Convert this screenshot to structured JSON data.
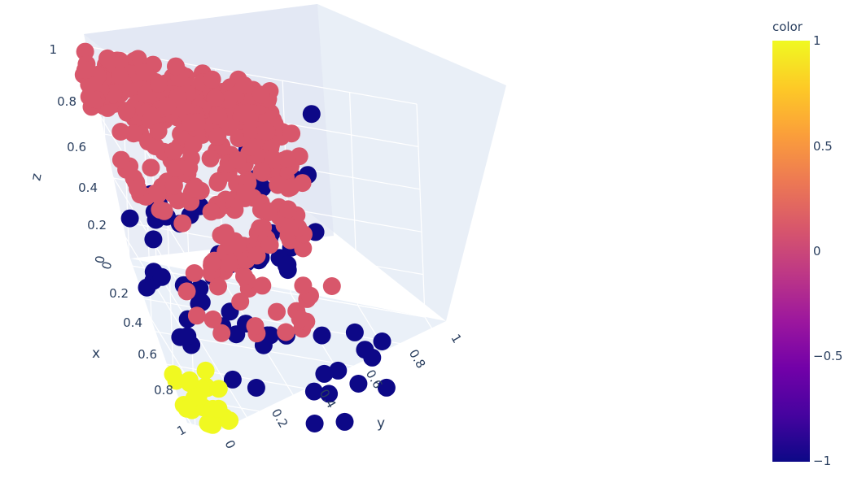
{
  "chart_data": {
    "type": "scatter3d",
    "axes": {
      "x": {
        "title": "x",
        "ticks": [
          "0",
          "0.2",
          "0.4",
          "0.6",
          "0.8",
          "1"
        ]
      },
      "y": {
        "title": "y",
        "ticks": [
          "0",
          "0.2",
          "0.4",
          "0.6",
          "0.8",
          "1"
        ]
      },
      "z": {
        "title": "z",
        "ticks": [
          "0",
          "0.2",
          "0.4",
          "0.6",
          "0.8",
          "1"
        ]
      }
    },
    "range": {
      "x": [
        0,
        1
      ],
      "y": [
        0,
        1
      ],
      "z": [
        0,
        1
      ]
    },
    "colorscale": [
      "#0d0887",
      "#46039f",
      "#7201a8",
      "#9c179e",
      "#bd3786",
      "#d8576b",
      "#ed7953",
      "#fb9f3a",
      "#fdca26",
      "#f0f921"
    ],
    "colorbar": {
      "title": "color",
      "range": [
        -1,
        1
      ],
      "tick_values": [
        1,
        0.5,
        0,
        -0.5,
        -1
      ],
      "tick_labels": [
        "1",
        "0.5",
        "0",
        "−0.5",
        "−1"
      ]
    },
    "groups": [
      {
        "color_value": 0,
        "description_count": 2600
      },
      {
        "color_value": -1,
        "description_count": 70
      },
      {
        "color_value": 1,
        "description_count": 25
      }
    ],
    "grid": true,
    "scene_background": "#e5ecf6"
  }
}
